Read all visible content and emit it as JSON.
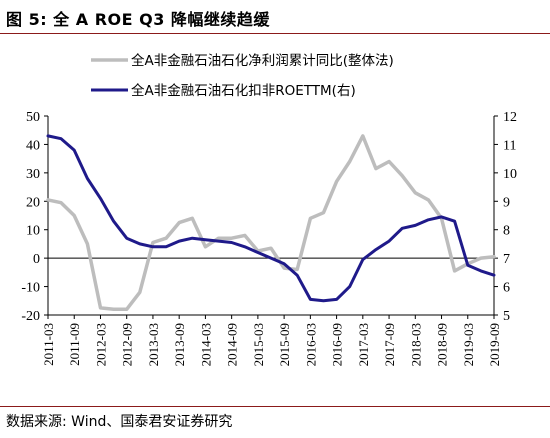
{
  "header": {
    "title": "图 5:  全 A ROE Q3 降幅继续趋缓"
  },
  "footer": {
    "source": "数据来源:  Wind、国泰君安证券研究"
  },
  "chart_data": {
    "type": "line",
    "legend_placement": "top-center",
    "grid": false,
    "x_ticks": [
      "2011-03",
      "2011-09",
      "2012-03",
      "2012-09",
      "2013-03",
      "2013-09",
      "2014-03",
      "2014-09",
      "2015-03",
      "2015-09",
      "2016-03",
      "2016-09",
      "2017-03",
      "2017-09",
      "2018-03",
      "2018-09",
      "2019-03",
      "2019-09"
    ],
    "y_left": {
      "min": -20,
      "max": 50,
      "ticks": [
        -20,
        -10,
        0,
        10,
        20,
        30,
        40,
        50
      ]
    },
    "y_right": {
      "min": 5,
      "max": 12,
      "ticks": [
        5,
        6,
        7,
        8,
        9,
        10,
        11,
        12
      ]
    },
    "series": [
      {
        "name": "全A非金融石油石化净利润累计同比(整体法)",
        "axis": "left",
        "color": "#bdbdbd",
        "x": [
          "2011-03",
          "2011-06",
          "2011-09",
          "2011-12",
          "2012-03",
          "2012-06",
          "2012-09",
          "2012-12",
          "2013-03",
          "2013-06",
          "2013-09",
          "2013-12",
          "2014-03",
          "2014-06",
          "2014-09",
          "2014-12",
          "2015-03",
          "2015-06",
          "2015-09",
          "2015-12",
          "2016-03",
          "2016-06",
          "2016-09",
          "2016-12",
          "2017-03",
          "2017-06",
          "2017-09",
          "2017-12",
          "2018-03",
          "2018-06",
          "2018-09",
          "2018-12",
          "2019-03",
          "2019-06",
          "2019-09"
        ],
        "values": [
          20.5,
          19.5,
          15,
          5,
          -17.5,
          -18,
          -18,
          -12,
          5.5,
          7,
          12.5,
          14,
          4,
          7,
          7,
          8,
          2.5,
          3.5,
          -3.5,
          -4,
          14,
          16,
          27,
          34,
          43,
          31.5,
          34,
          29,
          23,
          20.5,
          14,
          -4.5,
          -2,
          0,
          0.5
        ]
      },
      {
        "name": "全A非金融石油石化扣非ROETTM(右)",
        "axis": "right",
        "color": "#1f1a8a",
        "x": [
          "2011-03",
          "2011-06",
          "2011-09",
          "2011-12",
          "2012-03",
          "2012-06",
          "2012-09",
          "2012-12",
          "2013-03",
          "2013-06",
          "2013-09",
          "2013-12",
          "2014-03",
          "2014-06",
          "2014-09",
          "2014-12",
          "2015-03",
          "2015-06",
          "2015-09",
          "2015-12",
          "2016-03",
          "2016-06",
          "2016-09",
          "2016-12",
          "2017-03",
          "2017-06",
          "2017-09",
          "2017-12",
          "2018-03",
          "2018-06",
          "2018-09",
          "2018-12",
          "2019-03",
          "2019-06",
          "2019-09"
        ],
        "values": [
          11.3,
          11.2,
          10.8,
          9.8,
          9.1,
          8.3,
          7.7,
          7.5,
          7.4,
          7.4,
          7.6,
          7.7,
          7.65,
          7.6,
          7.55,
          7.4,
          7.2,
          7.0,
          6.8,
          6.4,
          5.55,
          5.5,
          5.55,
          6.0,
          6.95,
          7.3,
          7.6,
          8.05,
          8.15,
          8.35,
          8.45,
          8.3,
          6.75,
          6.55,
          6.4
        ]
      }
    ]
  }
}
